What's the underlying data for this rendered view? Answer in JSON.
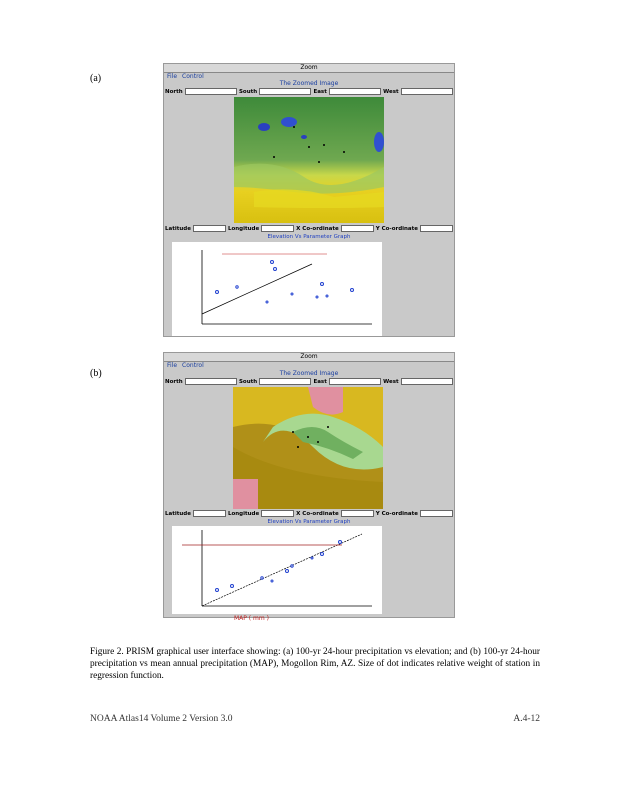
{
  "figure": {
    "panels": [
      {
        "label": "(a)",
        "window_title": "Zoom",
        "menu": [
          "File",
          "Control"
        ],
        "image_title": "The Zoomed Image",
        "coords": [
          "North",
          "South",
          "East",
          "West"
        ],
        "cursor": [
          "Latitude",
          "Longitude",
          "X Co-ordinate",
          "Y Co-ordinate"
        ],
        "graph_title": "Elevation Vs Parameter Graph"
      },
      {
        "label": "(b)",
        "window_title": "Zoom",
        "menu": [
          "File",
          "Control"
        ],
        "image_title": "The Zoomed Image",
        "coords": [
          "North",
          "South",
          "East",
          "West"
        ],
        "cursor": [
          "Latitude",
          "Longitude",
          "X Co-ordinate",
          "Y Co-ordinate"
        ],
        "graph_title": "Elevation Vs Parameter Graph",
        "x_axis_label": "MAP ( mm )"
      }
    ],
    "caption": "Figure 2. PRISM graphical user interface showing: (a) 100-yr 24-hour precipitation vs elevation; and (b) 100-yr 24-hour precipitation vs mean annual precipitation (MAP), Mogollon Rim, AZ. Size of dot indicates relative weight of station in regression function."
  },
  "footer": {
    "left": "NOAA Atlas14 Volume 2 Version 3.0",
    "right": "A.4-12"
  }
}
